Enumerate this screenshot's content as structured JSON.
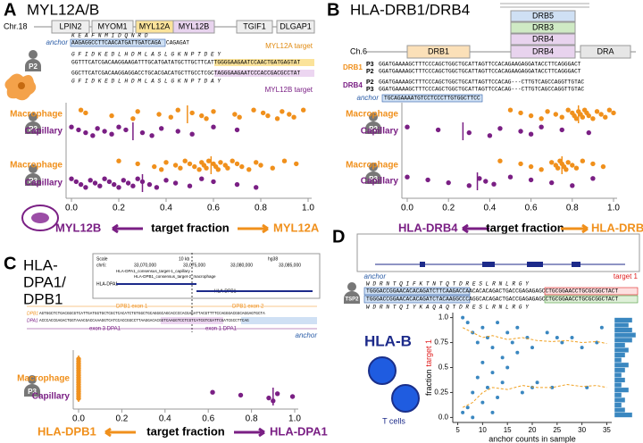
{
  "panels": {
    "a": {
      "letter": "A",
      "title": "MYL12A/B",
      "chrom": "Chr.18",
      "genes": [
        "LPIN2",
        "MYOM1",
        "MYL12A",
        "MYL12B",
        "TGIF1",
        "DLGAP1"
      ],
      "anchor_label": "anchor",
      "anchor_aa": "K E A F N M I D Q N R D",
      "anchor_seq": "AAGAGGCCTTCAACATGATTGATCAGA",
      "anchor_seq_rest": "CAGAGAT",
      "aa_top": "G F I D K E D L H D M L A S L G K N P T D E Y",
      "seq_top": "GGTTTCATCGACAAGGAAGATTTGCATGATATGCTTGCTTCATTGGGGAAGAATCCAACTGATGAGTAT",
      "seq_bottom": "GGCTTCATCGACAAGGAGGACCTGCACGACATGCTTGCCTCGCTAGGGAAGAATCCCACCGACGCCTAT",
      "aa_bottom": "G F I D K E D L H D M L A S L G K N P T D A Y",
      "target_a": "MYL12A target",
      "target_b": "MYL12B target",
      "left_label": "MYL12B",
      "axis_label": "target fraction",
      "right_label": "MYL12A"
    },
    "b": {
      "letter": "B",
      "title": "HLA-DRB1/DRB4",
      "haplotypes": [
        "DRB5",
        "DRB3",
        "DRB4"
      ],
      "chrom": "Ch.6",
      "genes": [
        "DRB1",
        "DRB4",
        "DRA"
      ],
      "groups": [
        "DRB1",
        "DRB4"
      ],
      "donors": [
        "P3",
        "P2",
        "P2",
        "P3"
      ],
      "seqs": [
        "GGATGAAAAGCTTTCCCAGCTGGCTGCATTAGTTCCACAGAAGAGGATACCTTCAGGGACT",
        "GGATGAAAAGCTTTCCCAGCTGGCTGCATTAGTTCCACAGAAGAGGATACCTTCAGGGACT",
        "GGATGAAAAGCTTTCCCAGCTGGCTGCATTAGTTCCACAG---CTTGTCAGCCAGGTTGTAC",
        "GGATGAAAAGCTTTCCCAGCTGGCTGCATTAGTTCCACAG---CTTGTCAGCCAGGTTGTAC"
      ],
      "anchor_label": "anchor",
      "anchor_seq": "TGCAGAAAATGTCCTCCCTTGTGGCTTCC",
      "left_label": "HLA-DRB4",
      "axis_label": "target fraction",
      "right_label": "HLA-DRB1"
    },
    "c": {
      "letter": "C",
      "title": [
        "HLA-",
        "DPA1/",
        "DPB1"
      ],
      "browser": [
        "Scale",
        "10 kb",
        "hg38",
        "chr6:",
        "33,070,000",
        "33,075,000",
        "33,080,000",
        "33,085,000",
        "HLA-DPA1_consensus_target-1_capillary",
        "HLA-DPB1_consensus_target-2_macrophage",
        "HLA-DPA1",
        "HLA-DPB1"
      ],
      "exons": [
        "DPB1 exon 1",
        "DPB1 exon 2",
        "exon 3 DPA1",
        "exon 1 DPA1"
      ],
      "row_labels": [
        "DPB1",
        "DPA1"
      ],
      "seqs": [
        "AGTGGCTCTGACGGCGTCATTGATGGTGCTCGCTCACATCTGTGGCTGCAGGGCAGCACCCCACGAGATTACGTTTTCCAGGGACGGCAGGAGTGCTA",
        "ACCCACCGAGACTGGTAAACGACCAAAGGTCATCCACCGGCCTTAAGGACACGGTCAAGGTCCTCGTCATCGTCGATTCGATCGCCTTCAG"
      ],
      "anchor_label": "anchor",
      "left_label": "HLA-DPB1",
      "axis_label": "target fraction",
      "right_label": "HLA-DPA1"
    },
    "d": {
      "letter": "D",
      "badge": "TSP2",
      "target_label": "target 1",
      "anchor_label": "anchor",
      "aa_top": "W D R N T Q I F K T N T Q T D R E S L R N L R G Y",
      "seq_top": "TGGGACCGGAACACACAGATCTTCAAGACCAACACACAGACTGACCGAGAGAGCCTGCGGAACCTGCGCGGCTACT",
      "seq_bottom": "TGGGACCGGAACACACAGATCTACAAGGCCCAGGCACAGACTGACCGAGAGAGCCTGCGGAACCTGCGCGGCTACT",
      "aa_bottom": "W D R N T Q I Y K A Q A Q T D R E S L R N L R G Y",
      "gene": "HLA-B",
      "cells": "T cells"
    }
  },
  "chart_data": [
    {
      "type": "strip",
      "group": "P2",
      "xlim": [
        0,
        1
      ],
      "series": [
        {
          "name": "Macrophage",
          "color": "#f0901c",
          "values": [
            0.04,
            0.06,
            0.17,
            0.26,
            0.28,
            0.37,
            0.42,
            0.45,
            0.51,
            0.55,
            0.57,
            0.6,
            0.69,
            0.71,
            0.77,
            0.81,
            0.83,
            0.87,
            0.89,
            0.92,
            0.94,
            0.98
          ],
          "median": 0.49
        },
        {
          "name": "Capillary",
          "color": "#7a1f84",
          "values": [
            0.0,
            0.03,
            0.06,
            0.09,
            0.11,
            0.14,
            0.17,
            0.2,
            0.23,
            0.3,
            0.34,
            0.38,
            0.45,
            0.51,
            0.6,
            0.7
          ],
          "median": 0.26
        }
      ]
    },
    {
      "type": "strip",
      "group": "P3",
      "xlim": [
        0,
        1
      ],
      "xticks": [
        {
          "value": 0,
          "label": "0.0"
        },
        0.2,
        0.4,
        0.6,
        0.8,
        {
          "value": 1,
          "label": "1.0"
        }
      ],
      "series": [
        {
          "name": "Macrophage",
          "color": "#f0901c",
          "values": [
            0.2,
            0.28,
            0.35,
            0.38,
            0.4,
            0.44,
            0.46,
            0.48,
            0.5,
            0.52,
            0.54,
            0.55,
            0.56,
            0.57,
            0.58,
            0.6,
            0.61,
            0.62,
            0.63,
            0.65,
            0.66,
            0.68,
            0.7,
            0.72,
            0.75,
            0.78,
            0.8,
            0.85,
            0.9,
            0.95
          ],
          "median": 0.59
        },
        {
          "name": "Capillary",
          "color": "#7a1f84",
          "values": [
            0.0,
            0.02,
            0.04,
            0.06,
            0.08,
            0.1,
            0.12,
            0.14,
            0.16,
            0.18,
            0.2,
            0.22,
            0.24,
            0.26,
            0.28,
            0.3,
            0.33,
            0.36,
            0.4,
            0.44,
            0.5,
            0.55,
            0.6,
            0.7,
            0.78
          ],
          "median": 0.3
        }
      ]
    },
    {
      "type": "strip",
      "group": "P2",
      "xlim": [
        0,
        1
      ],
      "series": [
        {
          "name": "Macrophage",
          "color": "#f0901c",
          "values": [
            0.5,
            0.55,
            0.6,
            0.65,
            0.68,
            0.72,
            0.75,
            0.78,
            0.8,
            0.81,
            0.82,
            0.83,
            0.84,
            0.85,
            0.86,
            0.87,
            0.88,
            0.9,
            0.92,
            0.94,
            0.96,
            0.98,
            1.0
          ],
          "median": 0.83
        },
        {
          "name": "Capillary",
          "color": "#7a1f84",
          "values": [
            0.0,
            0.15,
            0.3,
            0.4,
            0.45,
            0.55,
            0.6,
            0.65,
            0.75,
            0.88
          ],
          "median": 0.27
        }
      ]
    },
    {
      "type": "strip",
      "group": "P3",
      "xlim": [
        0,
        1
      ],
      "xticks": [
        {
          "value": 0,
          "label": "0.0"
        },
        0.2,
        0.4,
        0.6,
        0.8,
        {
          "value": 1,
          "label": "1.0"
        }
      ],
      "series": [
        {
          "name": "Macrophage",
          "color": "#f0901c",
          "values": [
            0.45,
            0.55,
            0.6,
            0.65,
            0.7,
            0.72,
            0.73,
            0.74,
            0.75,
            0.76,
            0.77,
            0.78,
            0.8,
            0.82,
            0.85,
            0.9,
            0.95
          ],
          "median": 0.75
        },
        {
          "name": "Capillary",
          "color": "#7a1f84",
          "values": [
            0.0,
            0.1,
            0.2,
            0.3,
            0.35,
            0.38,
            0.42,
            0.5,
            0.6,
            0.7,
            0.8,
            0.9
          ],
          "median": 0.34
        }
      ]
    },
    {
      "type": "strip",
      "group": "P3",
      "xlim": [
        0,
        1
      ],
      "xticks": [
        {
          "value": 0,
          "label": "0.0"
        },
        0.2,
        0.4,
        0.6,
        0.8,
        {
          "value": 1,
          "label": "1.0"
        }
      ],
      "series": [
        {
          "name": "Macrophage",
          "color": "#f0901c",
          "values": [
            0,
            0,
            0,
            0,
            0,
            0,
            0,
            0,
            0,
            0,
            0,
            0,
            0,
            0,
            0,
            0,
            0,
            0
          ],
          "median": 0
        },
        {
          "name": "Capillary",
          "color": "#7a1f84",
          "values": [
            0.62,
            0.75,
            0.88,
            0.9,
            0.92,
            0.99
          ],
          "median": 0.9
        }
      ]
    },
    {
      "type": "scatter",
      "xlabel": "anchor counts in sample",
      "ylabel": [
        "fraction",
        "target 1"
      ],
      "xlim": [
        4,
        36
      ],
      "ylim": [
        -0.05,
        1.05
      ],
      "xticks": [
        5,
        10,
        15,
        20,
        25,
        30,
        35
      ],
      "yticks": [
        {
          "value": 0,
          "label": "0.0"
        },
        0.25,
        0.5,
        0.75,
        {
          "value": 1,
          "label": "1.0"
        }
      ],
      "series": [
        {
          "style": "points",
          "color": "#3a87c0",
          "x": [
            6,
            6,
            7,
            7,
            8,
            8,
            8,
            9,
            9,
            10,
            10,
            10,
            11,
            11,
            12,
            12,
            13,
            13,
            14,
            14,
            15,
            16,
            17,
            18,
            19,
            20,
            21,
            23,
            24,
            26,
            28,
            30,
            31,
            33,
            34,
            12,
            15,
            17,
            20,
            25
          ],
          "values": [
            1.0,
            0.05,
            0.95,
            0.1,
            0.85,
            0.25,
            0.0,
            0.75,
            0.4,
            0.9,
            0.55,
            0.15,
            0.8,
            0.3,
            0.7,
            0.45,
            0.95,
            0.2,
            0.6,
            0.35,
            0.85,
            0.75,
            0.9,
            0.25,
            0.8,
            0.7,
            0.35,
            0.85,
            0.3,
            0.75,
            0.8,
            0.7,
            0.3,
            0.75,
            0.9,
            0.05,
            0.5,
            0.65,
            0.3,
            0.8
          ]
        },
        {
          "style": "dashed",
          "color": "#f0a020",
          "x": [
            6,
            8,
            10,
            12,
            15,
            18,
            21,
            24,
            27,
            30,
            33,
            35
          ],
          "values": [
            0.9,
            0.85,
            0.8,
            0.82,
            0.78,
            0.8,
            0.77,
            0.76,
            0.77,
            0.75,
            0.76,
            0.74
          ]
        },
        {
          "style": "dashed",
          "color": "#f0a020",
          "x": [
            6,
            8,
            10,
            12,
            15,
            18,
            21,
            24,
            27,
            30,
            33,
            35
          ],
          "values": [
            0.1,
            0.15,
            0.25,
            0.3,
            0.28,
            0.32,
            0.3,
            0.3,
            0.33,
            0.31,
            0.32,
            0.3
          ]
        }
      ]
    },
    {
      "type": "histogram",
      "orientation": "horizontal",
      "color": "#3a87c0",
      "xlim": [
        0,
        7
      ],
      "ylim": [
        -0.05,
        1.05
      ],
      "bins": [
        0,
        0.05,
        0.1,
        0.15,
        0.2,
        0.25,
        0.3,
        0.35,
        0.4,
        0.45,
        0.5,
        0.55,
        0.6,
        0.65,
        0.7,
        0.75,
        0.8,
        0.85,
        0.9,
        0.95,
        1
      ],
      "values": [
        5,
        3,
        2,
        3,
        2,
        4,
        2,
        3,
        2,
        3,
        4,
        2,
        3,
        4,
        3,
        5,
        6,
        5,
        4,
        5
      ]
    }
  ]
}
